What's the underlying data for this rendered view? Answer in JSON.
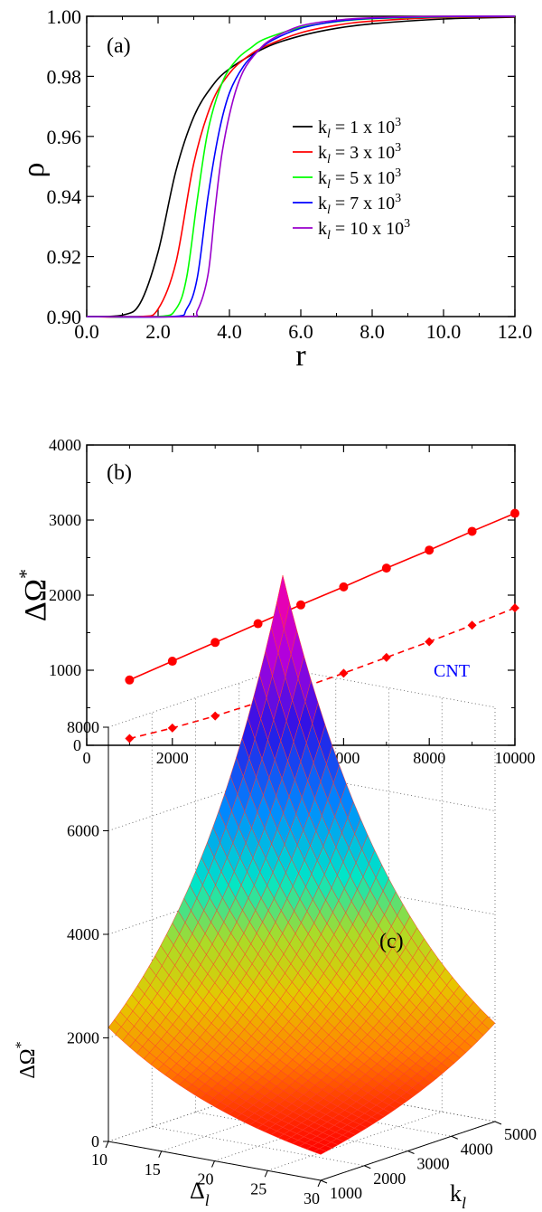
{
  "chart_data": [
    {
      "panel": "(a)",
      "type": "line",
      "xlabel": "r",
      "ylabel": "ρ",
      "xlim": [
        0,
        12
      ],
      "ylim": [
        0.9,
        1.0
      ],
      "xticks": [
        "0.0",
        "2.0",
        "4.0",
        "6.0",
        "8.0",
        "10.0",
        "12.0"
      ],
      "yticks": [
        "0.90",
        "0.92",
        "0.94",
        "0.96",
        "0.98",
        "1.00"
      ],
      "legend_position": "right",
      "series": [
        {
          "name": "k_l = 1 x 10^3",
          "label_main": "k",
          "label_sub": "l",
          "label_rest": " = 1 x 10",
          "label_sup": "3",
          "color": "#000000",
          "x": [
            0,
            1,
            1.5,
            2,
            2.5,
            3,
            3.5,
            4,
            5,
            6,
            7,
            8,
            10,
            12
          ],
          "y": [
            0.9,
            0.9005,
            0.9045,
            0.9215,
            0.9485,
            0.9665,
            0.9765,
            0.9825,
            0.9895,
            0.9935,
            0.996,
            0.9975,
            0.9991,
            0.9997
          ]
        },
        {
          "name": "k_l = 3 x 10^3",
          "label_main": "k",
          "label_sub": "l",
          "label_rest": " = 3 x 10",
          "label_sup": "3",
          "color": "#ff0000",
          "x": [
            0,
            1.5,
            2,
            2.5,
            3,
            3.5,
            4,
            4.5,
            5,
            6,
            7,
            8,
            10,
            12
          ],
          "y": [
            0.9,
            0.9,
            0.9025,
            0.918,
            0.951,
            0.971,
            0.981,
            0.9865,
            0.99,
            0.9945,
            0.997,
            0.9984,
            0.9996,
            0.9999
          ]
        },
        {
          "name": "k_l = 5 x 10^3",
          "label_main": "k",
          "label_sub": "l",
          "label_rest": " = 5 x 10",
          "label_sup": "3",
          "color": "#00ff00",
          "x": [
            0,
            2,
            2.5,
            2.8,
            3.1,
            3.4,
            3.8,
            4.2,
            4.6,
            5,
            6,
            7,
            8,
            10,
            12
          ],
          "y": [
            0.9,
            0.9,
            0.9025,
            0.913,
            0.939,
            0.962,
            0.978,
            0.9855,
            0.9895,
            0.9925,
            0.9963,
            0.9982,
            0.9992,
            0.9998,
            1.0
          ]
        },
        {
          "name": "k_l = 7 x 10^3",
          "label_main": "k",
          "label_sub": "l",
          "label_rest": " = 7 x 10",
          "label_sup": "3",
          "color": "#0000ff",
          "x": [
            0,
            2.4,
            2.8,
            3.1,
            3.4,
            3.7,
            4,
            4.4,
            4.8,
            5.2,
            6,
            7,
            8,
            10,
            12
          ],
          "y": [
            0.9,
            0.9,
            0.9025,
            0.913,
            0.94,
            0.961,
            0.9745,
            0.9835,
            0.9885,
            0.992,
            0.996,
            0.9983,
            0.9993,
            0.9999,
            1.0
          ]
        },
        {
          "name": "k_l = 10 x 10^3",
          "label_main": "k",
          "label_sub": "l",
          "label_rest": " = 10 x 10",
          "label_sup": "3",
          "color": "#9900cc",
          "x": [
            0,
            2.8,
            3.1,
            3.4,
            3.6,
            3.8,
            4.1,
            4.4,
            4.8,
            5.2,
            6,
            7,
            8,
            10,
            12
          ],
          "y": [
            0.9,
            0.9,
            0.902,
            0.914,
            0.936,
            0.955,
            0.972,
            0.982,
            0.9885,
            0.9925,
            0.9968,
            0.9987,
            0.9995,
            1.0,
            1.0
          ]
        }
      ]
    },
    {
      "panel": "(b)",
      "type": "line",
      "xlabel": "k",
      "xlabel_sub": "l",
      "ylabel": "ΔΩ",
      "ylabel_sup": "*",
      "xlim": [
        0,
        10000
      ],
      "ylim": [
        0,
        4000
      ],
      "xticks": [
        "0",
        "2000",
        "4000",
        "6000",
        "8000",
        "10000"
      ],
      "yticks": [
        "0",
        "1000",
        "2000",
        "3000",
        "4000"
      ],
      "annotation": "CNT",
      "annotation_color": "#0000ff",
      "series": [
        {
          "style": "solid",
          "marker": "circle",
          "color": "#ff0000",
          "x": [
            1000,
            2000,
            3000,
            4000,
            5000,
            6000,
            7000,
            8000,
            9000,
            10000
          ],
          "y": [
            870,
            1120,
            1370,
            1620,
            1870,
            2110,
            2360,
            2600,
            2850,
            3090
          ]
        },
        {
          "style": "dashed",
          "marker": "diamond",
          "color": "#ff0000",
          "x": [
            1000,
            2000,
            3000,
            4000,
            5000,
            6000,
            7000,
            8000,
            9000,
            10000
          ],
          "y": [
            90,
            230,
            390,
            570,
            760,
            960,
            1170,
            1380,
            1600,
            1830
          ]
        }
      ]
    },
    {
      "panel": "(c)",
      "type": "surface3d",
      "xlabel": "Δ",
      "xlabel_sub": "l",
      "ylabel": "k",
      "ylabel_sub": "l",
      "zlabel": "ΔΩ",
      "zlabel_sup": "*",
      "xlim": [
        10,
        30
      ],
      "ylim": [
        1000,
        5000
      ],
      "zlim": [
        0,
        8000
      ],
      "xticks": [
        "10",
        "15",
        "20",
        "25",
        "30"
      ],
      "yticks": [
        "1000",
        "2000",
        "3000",
        "4000",
        "5000"
      ],
      "zticks": [
        "0",
        "2000",
        "4000",
        "6000",
        "8000"
      ],
      "grid": true,
      "corner_values": {
        "dmin_kmin": 2200,
        "dmax_kmin": 500,
        "dmin_kmax": 9800,
        "dmax_kmax": 1900
      }
    }
  ],
  "panel_tags": {
    "a": "(a)",
    "b": "(b)",
    "c": "(c)"
  }
}
